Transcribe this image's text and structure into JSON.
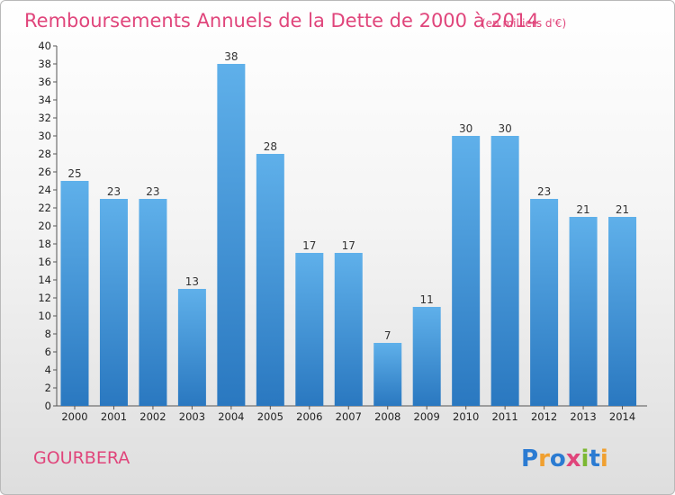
{
  "chart_data": {
    "type": "bar",
    "title": "Remboursements Annuels de la Dette de 2000 à 2014",
    "unit_note": "(en milliers d'€)",
    "categories": [
      "2000",
      "2001",
      "2002",
      "2003",
      "2004",
      "2005",
      "2006",
      "2007",
      "2008",
      "2009",
      "2010",
      "2011",
      "2012",
      "2013",
      "2014"
    ],
    "values": [
      25,
      23,
      23,
      13,
      38,
      28,
      17,
      17,
      7,
      11,
      30,
      30,
      23,
      21,
      21
    ],
    "ylim": [
      0,
      40
    ],
    "y_ticks": [
      0,
      2,
      4,
      6,
      8,
      10,
      12,
      14,
      16,
      18,
      20,
      22,
      24,
      26,
      28,
      30,
      32,
      34,
      36,
      38,
      40
    ],
    "grid": false,
    "legend": "none",
    "data_labels": true,
    "bar_color": "#3d8fd6"
  },
  "footer": {
    "commune": "GOURBERA",
    "logo_text": "Proxiti",
    "logo_colors": [
      "#2b7bd2",
      "#f0a030",
      "#2b7bd2",
      "#e0457b",
      "#7cb832",
      "#2b7bd2",
      "#f0a030"
    ]
  },
  "colors": {
    "title": "#e0457b",
    "axis": "#555555"
  }
}
